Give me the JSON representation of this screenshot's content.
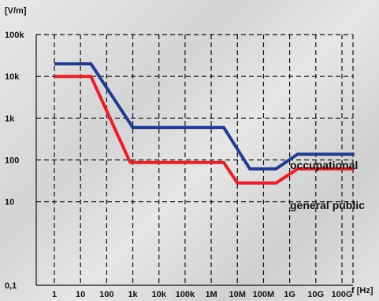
{
  "chart_data": {
    "type": "line",
    "title": "",
    "ylabel": "[V/m]",
    "xlabel": "f [Hz]",
    "x_scale": "log",
    "y_scale": "log",
    "xlim": [
      1,
      100000000000
    ],
    "ylim": [
      0.1,
      100000
    ],
    "grid": true,
    "x_ticks": [
      {
        "value": 1,
        "label": "1"
      },
      {
        "value": 10,
        "label": "10"
      },
      {
        "value": 100,
        "label": "100"
      },
      {
        "value": 1000,
        "label": "1k"
      },
      {
        "value": 10000,
        "label": "10k"
      },
      {
        "value": 100000,
        "label": "100k"
      },
      {
        "value": 1000000,
        "label": "1M"
      },
      {
        "value": 10000000,
        "label": "10M"
      },
      {
        "value": 100000000,
        "label": "100M"
      },
      {
        "value": 1000000000,
        "label": "1G"
      },
      {
        "value": 10000000000,
        "label": "10G"
      },
      {
        "value": 100000000000,
        "label": "100G"
      }
    ],
    "y_ticks": [
      {
        "value": 0.1,
        "label": "0,1"
      },
      {
        "value": 10,
        "label": "10"
      },
      {
        "value": 100,
        "label": "100"
      },
      {
        "value": 1000,
        "label": "1k"
      },
      {
        "value": 10000,
        "label": "10k"
      },
      {
        "value": 100000,
        "label": "100k"
      }
    ],
    "series": [
      {
        "name": "occupational",
        "color": "#1f3c94",
        "x": [
          1,
          25,
          1000,
          3000000,
          30000000,
          300000000,
          2000000000,
          300000000000
        ],
        "y": [
          20000,
          20000,
          600,
          600,
          61,
          61,
          137,
          137
        ]
      },
      {
        "name": "general public",
        "color": "#ee1c25",
        "x": [
          1,
          25,
          800,
          150000,
          3000000,
          10000000,
          300000000,
          2000000000,
          300000000000
        ],
        "y": [
          10000,
          10000,
          87,
          87,
          87,
          28,
          28,
          61,
          61
        ]
      }
    ]
  }
}
